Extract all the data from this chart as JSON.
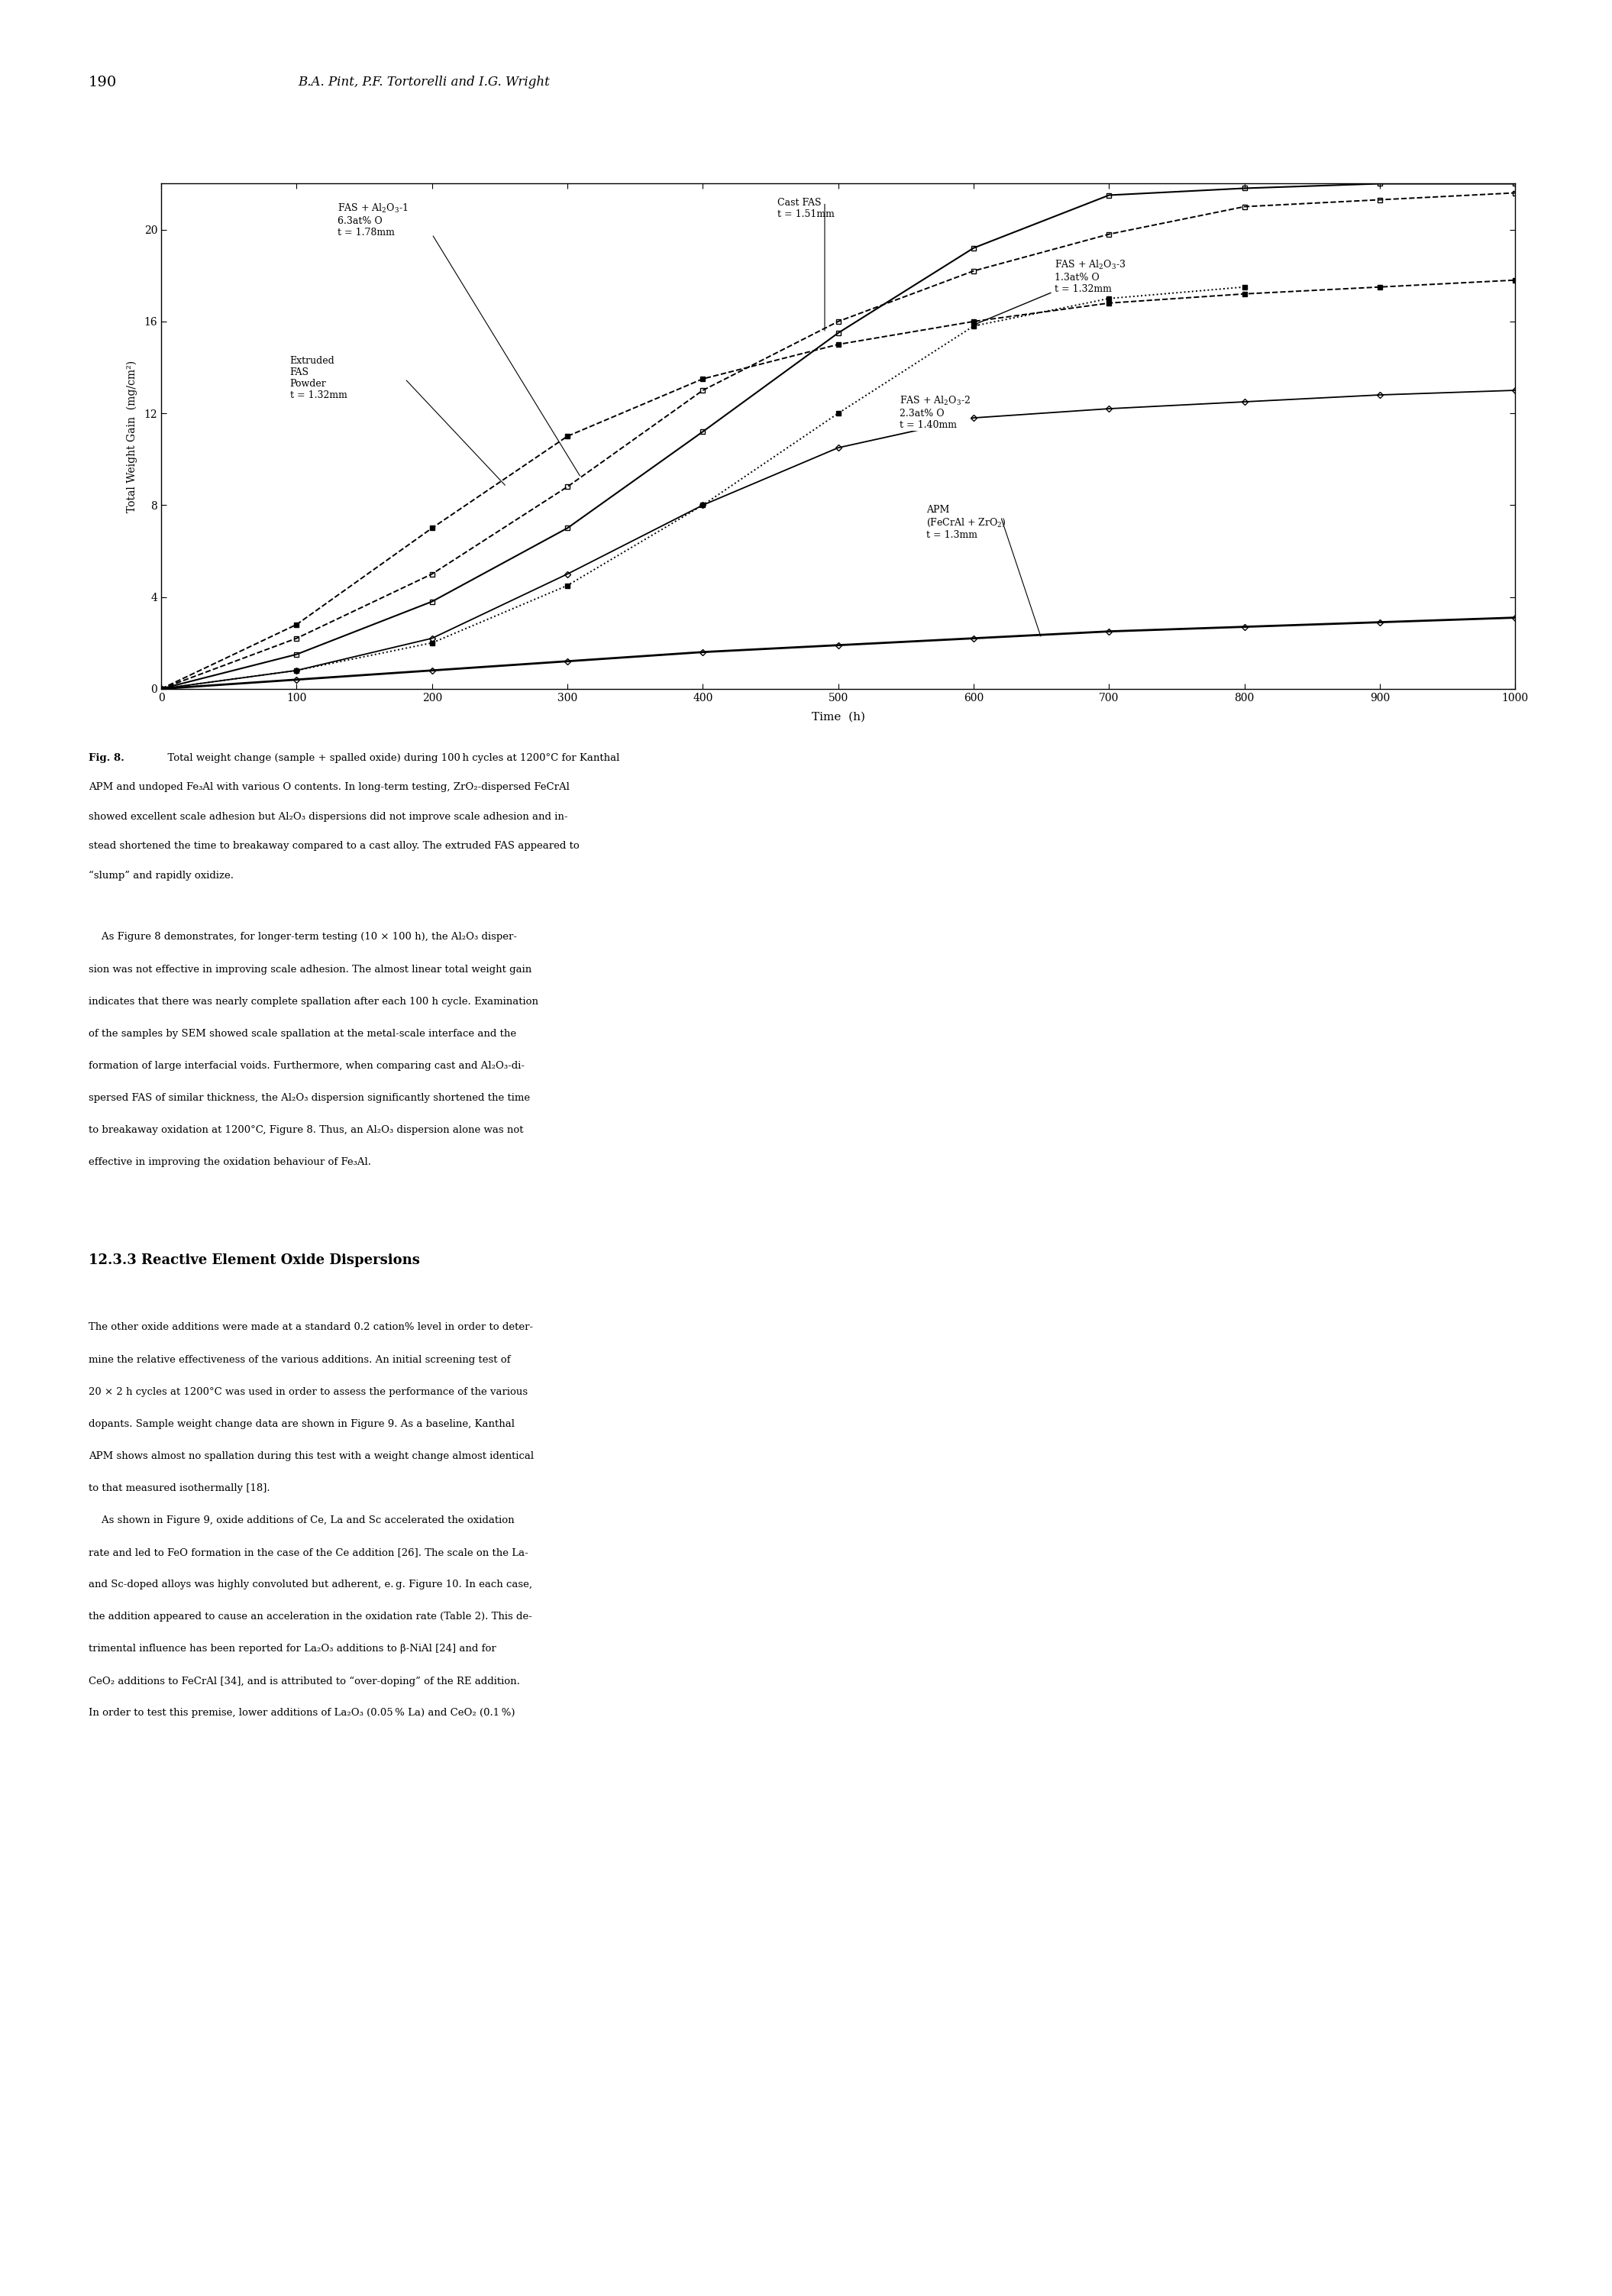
{
  "page_number": "190",
  "page_header": "B.A. Pint, P.F. Tortorelli and I.G. Wright",
  "xlabel": "Time  (h)",
  "ylabel": "Total Weight Gain  (mg/cm²)",
  "xlim": [
    0,
    1000
  ],
  "ylim": [
    0,
    22
  ],
  "xticks": [
    0,
    100,
    200,
    300,
    400,
    500,
    600,
    700,
    800,
    900,
    1000
  ],
  "yticks": [
    0,
    4,
    8,
    12,
    16,
    20
  ],
  "series": [
    {
      "name": "FAS+Al2O3-1",
      "x": [
        0,
        100,
        200,
        300,
        400,
        500,
        600,
        700,
        800,
        900,
        1000
      ],
      "y": [
        0,
        2.2,
        5.0,
        8.8,
        13.0,
        16.0,
        18.2,
        19.8,
        21.0,
        21.3,
        21.6
      ],
      "marker": "s",
      "linestyle": "--",
      "linewidth": 1.4,
      "markersize": 5,
      "mfc": "none",
      "mec": "black",
      "mew": 1.0
    },
    {
      "name": "Cast FAS",
      "x": [
        0,
        100,
        200,
        300,
        400,
        500,
        600,
        700,
        800,
        900,
        1000
      ],
      "y": [
        0,
        1.5,
        3.8,
        7.0,
        11.2,
        15.5,
        19.2,
        21.5,
        21.8,
        22.0,
        22.0
      ],
      "marker": "s",
      "linestyle": "-",
      "linewidth": 1.5,
      "markersize": 5,
      "mfc": "none",
      "mec": "black",
      "mew": 1.0
    },
    {
      "name": "Extruded FAS Powder",
      "x": [
        0,
        100,
        200,
        300,
        400,
        500,
        600,
        700,
        800,
        900,
        1000
      ],
      "y": [
        0,
        2.8,
        7.0,
        11.0,
        13.5,
        15.0,
        16.0,
        16.8,
        17.2,
        17.5,
        17.8
      ],
      "marker": "s",
      "linestyle": "--",
      "linewidth": 1.4,
      "markersize": 5,
      "mfc": "black",
      "mec": "black",
      "mew": 1.0
    },
    {
      "name": "FAS+Al2O3-3",
      "x": [
        0,
        100,
        200,
        300,
        400,
        500,
        600,
        700,
        800
      ],
      "y": [
        0,
        0.8,
        2.0,
        4.5,
        8.0,
        12.0,
        15.8,
        17.0,
        17.5
      ],
      "marker": "s",
      "linestyle": ":",
      "linewidth": 1.4,
      "markersize": 5,
      "mfc": "black",
      "mec": "black",
      "mew": 1.0
    },
    {
      "name": "FAS+Al2O3-2",
      "x": [
        0,
        100,
        200,
        300,
        400,
        500,
        600,
        700,
        800,
        900,
        1000
      ],
      "y": [
        0,
        0.8,
        2.2,
        5.0,
        8.0,
        10.5,
        11.8,
        12.2,
        12.5,
        12.8,
        13.0
      ],
      "marker": "D",
      "linestyle": "-",
      "linewidth": 1.3,
      "markersize": 4,
      "mfc": "none",
      "mec": "black",
      "mew": 1.0
    },
    {
      "name": "APM",
      "x": [
        0,
        100,
        200,
        300,
        400,
        500,
        600,
        700,
        800,
        900,
        1000
      ],
      "y": [
        0,
        0.4,
        0.8,
        1.2,
        1.6,
        1.9,
        2.2,
        2.5,
        2.7,
        2.9,
        3.1
      ],
      "marker": "D",
      "linestyle": "-",
      "linewidth": 2.0,
      "markersize": 4,
      "mfc": "none",
      "mec": "black",
      "mew": 1.0
    }
  ],
  "fig_label_bold": "Fig. 8.",
  "fig_caption_rest": "  Total weight change (sample + spalled oxide) during 100 h cycles at 1200°C for Kanthal APM and undoped Fe₃Al with various O contents. In long-term testing, ZrO₂-dispersed FeCrAl showed excellent scale adhesion but Al₂O₃ dispersions did not improve scale adhesion and instead shortened the time to breakaway compared to a cast alloy. The extruded FAS appeared to “slump” and rapidly oxidize.",
  "body_para1": "    As Figure 8 demonstrates, for longer-term testing (10 × 100 h), the Al₂O₃ dispersion was not effective in improving scale adhesion. The almost linear total weight gain indicates that there was nearly complete spallation after each 100 h cycle. Examination of the samples by SEM showed scale spallation at the metal-scale interface and the formation of large interfacial voids. Furthermore, when comparing cast and Al₂O₃-dispersed FAS of similar thickness, the Al₂O₃ dispersion significantly shortened the time to breakaway oxidation at 1200°C, Figure 8. Thus, an Al₂O₃ dispersion alone was not effective in improving the oxidation behaviour of Fe₃Al.",
  "section_title": "12.3.3 Reactive Element Oxide Dispersions",
  "body_para2": "The other oxide additions were made at a standard 0.2 cation% level in order to determine the relative effectiveness of the various additions. An initial screening test of 20 × 2 h cycles at 1200°C was used in order to assess the performance of the various dopants. Sample weight change data are shown in Figure 9. As a baseline, Kanthal APM shows almost no spallation during this test with a weight change almost identical to that measured isothermally [18].",
  "body_para3": "    As shown in Figure 9, oxide additions of Ce, La and Sc accelerated the oxidation rate and led to FeO formation in the case of the Ce addition [26]. The scale on the La- and Sc-doped alloys was highly convoluted but adherent, e. g. Figure 10. In each case, the addition appeared to cause an acceleration in the oxidation rate (Table 2). This detrimental influence has been reported for La₂O₃ additions to β-NiAl [24] and for CeO₂ additions to FeCrAl [34], and is attributed to “over-doping” of the RE addition. In order to test this premise, lower additions of La₂O₃ (0.05 % La) and CeO₂ (0.1 %)",
  "background_color": "#ffffff"
}
